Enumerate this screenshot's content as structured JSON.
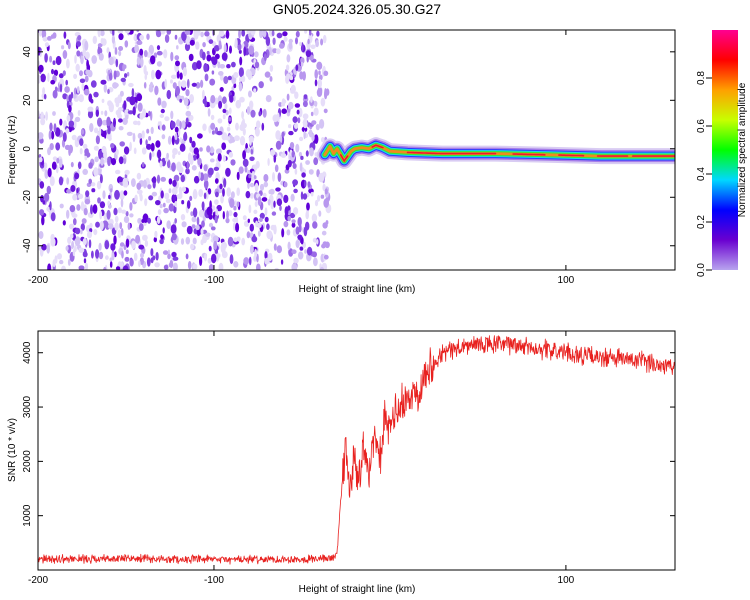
{
  "page": {
    "title": "GN05.2024.326.05.30.G27"
  },
  "chart_data": [
    {
      "type": "heatmap",
      "xlabel": "Height of straight line (km)",
      "ylabel": "Frequency (Hz)",
      "xlim": [
        -200,
        162
      ],
      "ylim": [
        -50,
        49
      ],
      "xticks": [
        -200,
        -100,
        100
      ],
      "yticks": [
        40,
        20,
        0,
        -20,
        -40
      ],
      "noise_region_x": [
        -200,
        -37
      ],
      "signal_track": [
        {
          "x": -37,
          "y": -2.5
        },
        {
          "x": -34,
          "y": 1.0
        },
        {
          "x": -32,
          "y": -2.0
        },
        {
          "x": -30,
          "y": 0.0
        },
        {
          "x": -28,
          "y": -2.5
        },
        {
          "x": -26,
          "y": -5.0
        },
        {
          "x": -24,
          "y": -3.0
        },
        {
          "x": -22,
          "y": -1.0
        },
        {
          "x": -20,
          "y": 0.0
        },
        {
          "x": -16,
          "y": 0.5
        },
        {
          "x": -12,
          "y": 0.0
        },
        {
          "x": -8,
          "y": 1.5
        },
        {
          "x": -4,
          "y": 0.5
        },
        {
          "x": 0,
          "y": -1.0
        },
        {
          "x": 10,
          "y": -1.5
        },
        {
          "x": 30,
          "y": -2.0
        },
        {
          "x": 60,
          "y": -2.0
        },
        {
          "x": 90,
          "y": -2.5
        },
        {
          "x": 120,
          "y": -3.0
        },
        {
          "x": 162,
          "y": -3.0
        }
      ],
      "colorbar": {
        "label": "Normalized spectral amplitude",
        "ticks": [
          0.0,
          0.2,
          0.4,
          0.6,
          0.8
        ],
        "stops": [
          "#b8a4ee",
          "#6a00d0",
          "#0000ff",
          "#00d8ff",
          "#00ff00",
          "#c8ff00",
          "#ffa000",
          "#ff0000",
          "#ff0090"
        ]
      }
    },
    {
      "type": "line",
      "xlabel": "Height of straight line (km)",
      "ylabel": "SNR (10 * v/v)",
      "xlim": [
        -200,
        162
      ],
      "ylim": [
        0,
        4400
      ],
      "xticks": [
        -200,
        -100,
        100
      ],
      "yticks": [
        1000,
        2000,
        3000,
        4000
      ],
      "color": "#e8211f",
      "series": [
        {
          "x": [
            -200,
            -150,
            -100,
            -50,
            -33,
            -30,
            -28,
            -26,
            -25,
            -24,
            -22,
            -20,
            -18,
            -15,
            -12,
            -9,
            -6,
            -3,
            0,
            3,
            6,
            10,
            15,
            20,
            25,
            30,
            40,
            50,
            60,
            70,
            80,
            90,
            100,
            110,
            120,
            130,
            140,
            150,
            162
          ],
          "y": [
            200,
            210,
            190,
            200,
            220,
            300,
            1300,
            1900,
            2500,
            1700,
            1600,
            2200,
            1500,
            2300,
            1900,
            2400,
            2000,
            2700,
            2600,
            2900,
            3000,
            3100,
            3300,
            3600,
            3850,
            4000,
            4100,
            4150,
            4150,
            4150,
            4100,
            4050,
            4000,
            3950,
            3900,
            3900,
            3850,
            3800,
            3750
          ]
        }
      ]
    }
  ]
}
